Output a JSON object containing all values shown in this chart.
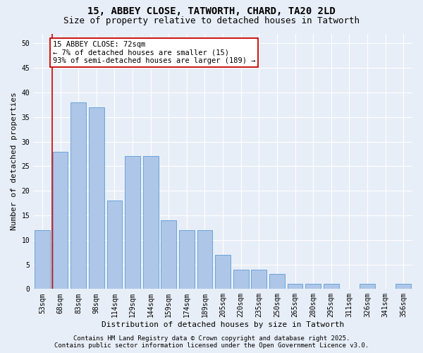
{
  "title_line1": "15, ABBEY CLOSE, TATWORTH, CHARD, TA20 2LD",
  "title_line2": "Size of property relative to detached houses in Tatworth",
  "xlabel": "Distribution of detached houses by size in Tatworth",
  "ylabel": "Number of detached properties",
  "categories": [
    "53sqm",
    "68sqm",
    "83sqm",
    "98sqm",
    "114sqm",
    "129sqm",
    "144sqm",
    "159sqm",
    "174sqm",
    "189sqm",
    "205sqm",
    "220sqm",
    "235sqm",
    "250sqm",
    "265sqm",
    "280sqm",
    "295sqm",
    "311sqm",
    "326sqm",
    "341sqm",
    "356sqm"
  ],
  "values": [
    12,
    28,
    38,
    37,
    18,
    27,
    27,
    14,
    12,
    12,
    7,
    4,
    4,
    3,
    1,
    1,
    1,
    0,
    1,
    0,
    1
  ],
  "bar_color": "#aec6e8",
  "bar_edge_color": "#5b9bd5",
  "vline_color": "#cc0000",
  "annotation_text": "15 ABBEY CLOSE: 72sqm\n← 7% of detached houses are smaller (15)\n93% of semi-detached houses are larger (189) →",
  "annotation_box_color": "#ffffff",
  "annotation_box_edge_color": "#cc0000",
  "ylim": [
    0,
    52
  ],
  "yticks": [
    0,
    5,
    10,
    15,
    20,
    25,
    30,
    35,
    40,
    45,
    50
  ],
  "background_color": "#e8eef7",
  "plot_bg_color": "#e8eef7",
  "grid_color": "#ffffff",
  "footer_line1": "Contains HM Land Registry data © Crown copyright and database right 2025.",
  "footer_line2": "Contains public sector information licensed under the Open Government Licence v3.0.",
  "title_fontsize": 10,
  "subtitle_fontsize": 9,
  "label_fontsize": 8,
  "tick_fontsize": 7,
  "annotation_fontsize": 7.5,
  "footer_fontsize": 6.5
}
